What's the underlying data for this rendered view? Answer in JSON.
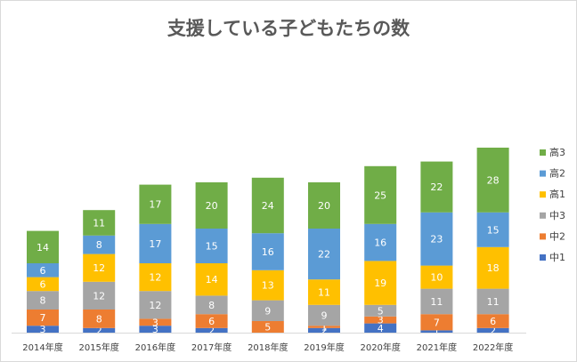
{
  "chart_data": {
    "type": "bar",
    "stacked": true,
    "title": "支援している子どもたちの数",
    "categories": [
      "2014年度",
      "2015年度",
      "2016年度",
      "2017年度",
      "2018年度",
      "2019年度",
      "2020年度",
      "2021年度",
      "2022年度"
    ],
    "series": [
      {
        "name": "中1",
        "color": "#4472c4",
        "values": [
          3,
          2,
          3,
          2,
          0,
          2,
          4,
          1,
          2
        ]
      },
      {
        "name": "中2",
        "color": "#ed7d31",
        "values": [
          7,
          8,
          3,
          6,
          5,
          1,
          3,
          7,
          6
        ]
      },
      {
        "name": "中3",
        "color": "#a5a5a5",
        "values": [
          8,
          12,
          12,
          8,
          9,
          9,
          5,
          11,
          11
        ]
      },
      {
        "name": "高1",
        "color": "#ffc000",
        "values": [
          6,
          12,
          12,
          14,
          13,
          11,
          19,
          10,
          18
        ]
      },
      {
        "name": "高2",
        "color": "#5b9bd5",
        "values": [
          6,
          8,
          17,
          15,
          16,
          22,
          16,
          23,
          15
        ]
      },
      {
        "name": "高3",
        "color": "#70ad47",
        "values": [
          14,
          11,
          17,
          20,
          24,
          20,
          25,
          22,
          28
        ]
      }
    ],
    "legend_position": "right",
    "grid": false,
    "ylim": [
      0,
      100
    ]
  }
}
